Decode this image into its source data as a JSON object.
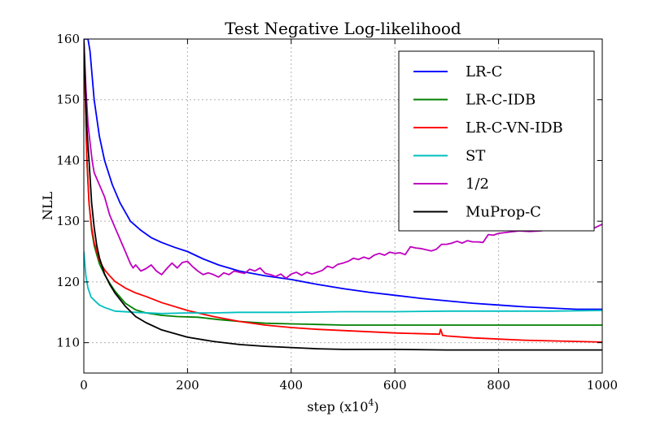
{
  "chart_data": {
    "type": "line",
    "title": "Test Negative Log-likelihood",
    "xlabel": "step (x10",
    "xlabel_sup": "4",
    "xlabel_close": ")",
    "ylabel": "NLL",
    "xlim": [
      0,
      1000
    ],
    "ylim": [
      105,
      160
    ],
    "xticks": [
      0,
      200,
      400,
      600,
      800,
      1000
    ],
    "yticks": [
      110,
      120,
      130,
      140,
      150,
      160
    ],
    "grid": true,
    "legend_position": "top-right",
    "series": [
      {
        "name": "LR-C",
        "color": "#0000ff",
        "x": [
          0,
          8,
          12,
          20,
          30,
          40,
          55,
          70,
          90,
          110,
          130,
          150,
          175,
          200,
          230,
          260,
          300,
          350,
          400,
          450,
          500,
          550,
          600,
          650,
          700,
          750,
          800,
          850,
          900,
          950,
          1000
        ],
        "y": [
          160,
          160,
          158,
          150,
          144,
          140,
          136,
          133,
          130,
          128.5,
          127.3,
          126.5,
          125.7,
          125,
          123.8,
          122.8,
          121.8,
          121,
          120.4,
          119.6,
          118.9,
          118.3,
          117.8,
          117.3,
          116.9,
          116.5,
          116.2,
          115.9,
          115.7,
          115.5,
          115.5
        ]
      },
      {
        "name": "LR-C-IDB",
        "color": "#008000",
        "x": [
          0,
          3,
          6,
          10,
          15,
          20,
          30,
          40,
          50,
          60,
          80,
          100,
          120,
          150,
          180,
          220,
          260,
          300,
          350,
          400,
          450,
          500,
          600,
          700,
          800,
          900,
          1000
        ],
        "y": [
          160,
          150,
          140,
          133,
          128.5,
          126,
          123,
          121.2,
          119.8,
          118.5,
          116.5,
          115.4,
          114.9,
          114.5,
          114.3,
          114.2,
          113.8,
          113.5,
          113.2,
          113.1,
          113,
          112.9,
          112.9,
          112.9,
          112.9,
          112.9,
          112.9
        ]
      },
      {
        "name": "LR-C-VN-IDB",
        "color": "#ff0000",
        "x": [
          0,
          3,
          6,
          10,
          15,
          20,
          30,
          40,
          50,
          60,
          80,
          100,
          120,
          150,
          200,
          250,
          300,
          350,
          400,
          450,
          500,
          600,
          686,
          688,
          690,
          692,
          694,
          700,
          750,
          800,
          850,
          900,
          950,
          1000
        ],
        "y": [
          160,
          150,
          140,
          133,
          129,
          126.5,
          123.5,
          122,
          121,
          120.1,
          119,
          118.2,
          117.6,
          116.6,
          115.3,
          114.3,
          113.5,
          112.9,
          112.5,
          112.2,
          112,
          111.6,
          111.4,
          112.2,
          111.8,
          111.2,
          111.2,
          111.1,
          110.8,
          110.6,
          110.4,
          110.3,
          110.2,
          110.1
        ]
      },
      {
        "name": "ST",
        "color": "#00bfbf",
        "x": [
          0,
          2,
          4,
          6,
          8,
          10,
          14,
          20,
          30,
          40,
          60,
          100,
          150,
          200,
          250,
          300,
          400,
          500,
          600,
          700,
          800,
          900,
          1000
        ],
        "y": [
          125,
          123,
          121,
          120,
          119,
          118.5,
          117.5,
          117,
          116.2,
          115.8,
          115.2,
          115,
          114.8,
          114.9,
          114.9,
          115,
          115,
          115.1,
          115.1,
          115.2,
          115.2,
          115.2,
          115.3
        ]
      },
      {
        "name": "1/2",
        "color": "#bf00bf",
        "x": [
          0,
          4,
          8,
          12,
          16,
          20,
          25,
          30,
          40,
          50,
          60,
          70,
          80,
          90,
          95,
          100,
          105,
          110,
          120,
          130,
          140,
          150,
          160,
          170,
          180,
          190,
          200,
          210,
          220,
          230,
          240,
          250,
          260,
          270,
          280,
          290,
          300,
          310,
          320,
          330,
          340,
          350,
          360,
          370,
          380,
          390,
          400,
          410,
          420,
          430,
          440,
          450,
          460,
          470,
          480,
          490,
          500,
          510,
          520,
          530,
          540,
          550,
          560,
          570,
          580,
          590,
          600,
          610,
          620,
          630,
          640,
          650,
          660,
          670,
          680,
          690,
          700,
          710,
          720,
          730,
          740,
          750,
          760,
          770,
          780,
          790,
          800,
          820,
          840,
          860,
          880,
          900,
          920,
          940,
          960,
          980,
          1000
        ],
        "y": [
          160,
          152,
          146,
          143,
          140,
          138,
          137,
          136,
          134,
          131,
          129,
          127,
          125,
          123,
          122.3,
          122.8,
          122.3,
          121.8,
          122.2,
          122.8,
          121.8,
          121.2,
          122.2,
          123.1,
          122.3,
          123.2,
          123.4,
          122.5,
          121.8,
          121.2,
          121.5,
          121.2,
          120.8,
          121.5,
          121.2,
          121.8,
          121.6,
          121.4,
          122.1,
          121.8,
          122.3,
          121.4,
          121.2,
          120.9,
          121.3,
          120.6,
          121.3,
          121.6,
          121.1,
          121.6,
          121.3,
          121.6,
          121.9,
          122.6,
          122.3,
          122.9,
          123.1,
          123.4,
          123.9,
          123.7,
          124.1,
          123.8,
          124.4,
          124.7,
          124.4,
          124.9,
          124.7,
          124.8,
          124.5,
          125.8,
          125.6,
          125.5,
          125.3,
          125.1,
          125.4,
          126.2,
          126.2,
          126.4,
          126.7,
          126.4,
          126.8,
          126.6,
          126.6,
          126.5,
          127.8,
          127.7,
          128,
          128.2,
          128.4,
          128.3,
          128.4,
          128.6,
          128.5,
          128.7,
          128.6,
          128.7,
          129.5
        ]
      },
      {
        "name": "MuProp-C",
        "color": "#000000",
        "x": [
          0,
          3,
          6,
          10,
          15,
          20,
          25,
          30,
          40,
          50,
          60,
          80,
          100,
          120,
          150,
          200,
          250,
          300,
          350,
          400,
          450,
          500,
          550,
          600,
          700,
          800,
          900,
          1000
        ],
        "y": [
          160,
          152,
          145,
          140,
          133,
          129,
          126,
          124,
          121.3,
          119.6,
          118.2,
          116,
          114.3,
          113.3,
          112.1,
          110.9,
          110.2,
          109.7,
          109.4,
          109.2,
          109,
          108.9,
          108.9,
          108.9,
          108.8,
          108.8,
          108.8,
          108.8
        ]
      }
    ]
  }
}
